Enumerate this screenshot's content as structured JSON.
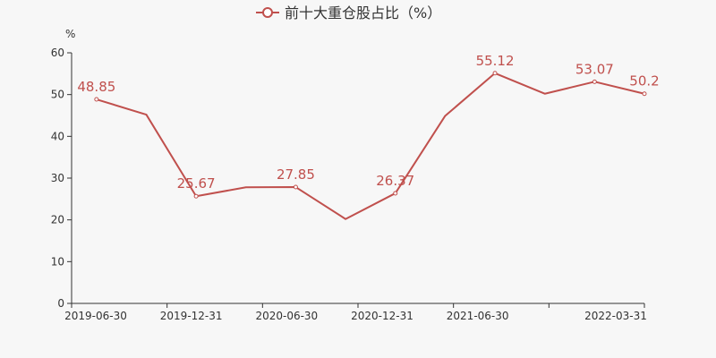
{
  "chart_data": {
    "type": "line",
    "legend": {
      "label": "前十大重仓股占比（%）",
      "position": "top-center"
    },
    "y_unit": "%",
    "ylim": [
      0,
      60
    ],
    "y_ticks": [
      0,
      10,
      20,
      30,
      40,
      50,
      60
    ],
    "grid": false,
    "x_tick_labels": [
      "2019-06-30",
      "2019-12-31",
      "2020-06-30",
      "2020-12-31",
      "2021-06-30",
      "2022-03-31"
    ],
    "series": [
      {
        "name": "前十大重仓股占比（%）",
        "color": "#c0504d",
        "points": [
          {
            "x": "2019-06-30",
            "y": 48.85,
            "label": "48.85"
          },
          {
            "x": "2019-09-30",
            "y": 45.2
          },
          {
            "x": "2019-12-31",
            "y": 25.67,
            "label": "25.67"
          },
          {
            "x": "2020-03-31",
            "y": 27.8
          },
          {
            "x": "2020-06-30",
            "y": 27.85,
            "label": "27.85"
          },
          {
            "x": "2020-09-30",
            "y": 20.2
          },
          {
            "x": "2020-12-31",
            "y": 26.37,
            "label": "26.37"
          },
          {
            "x": "2021-03-31",
            "y": 44.9
          },
          {
            "x": "2021-06-30",
            "y": 55.12,
            "label": "55.12"
          },
          {
            "x": "2021-09-30",
            "y": 50.2
          },
          {
            "x": "2021-12-31",
            "y": 53.07,
            "label": "53.07"
          },
          {
            "x": "2022-03-31",
            "y": 50.2,
            "label": "50.2"
          }
        ]
      }
    ]
  }
}
